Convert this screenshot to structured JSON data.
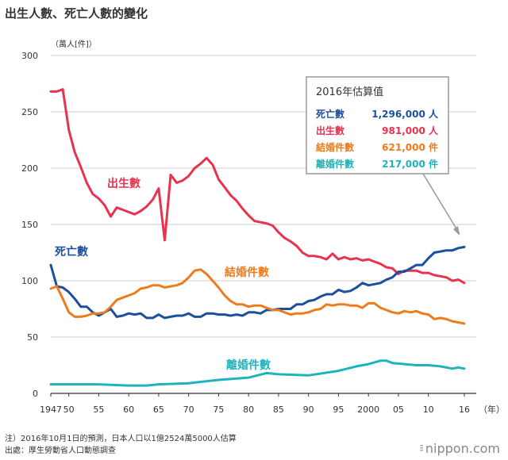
{
  "title": "出生人數、死亡人數的變化",
  "footer": {
    "note": "注）2016年10月1日的預測，日本人口以1億2524萬5000人估算",
    "source": "出處：厚生勞動省人口動態調查"
  },
  "brand": "nippon.com",
  "chart_data": {
    "type": "line",
    "ylabel": "（萬人[件]）",
    "xlabel": "（年）",
    "ylim": [
      0,
      300
    ],
    "yticks": [
      0,
      50,
      100,
      150,
      200,
      250,
      300
    ],
    "xlim": [
      1947,
      2016
    ],
    "xticks": [
      {
        "v": 1947,
        "label": "1947"
      },
      {
        "v": 1950,
        "label": "50"
      },
      {
        "v": 1955,
        "label": "55"
      },
      {
        "v": 1960,
        "label": "60"
      },
      {
        "v": 1965,
        "label": "65"
      },
      {
        "v": 1970,
        "label": "70"
      },
      {
        "v": 1975,
        "label": "75"
      },
      {
        "v": 1980,
        "label": "80"
      },
      {
        "v": 1985,
        "label": "85"
      },
      {
        "v": 1990,
        "label": "90"
      },
      {
        "v": 1995,
        "label": "95"
      },
      {
        "v": 2000,
        "label": "2000"
      },
      {
        "v": 2005,
        "label": "05"
      },
      {
        "v": 2010,
        "label": "10"
      },
      {
        "v": 2016,
        "label": "16"
      }
    ],
    "series": [
      {
        "name": "出生數",
        "color": "#e8334e",
        "x": [
          1947,
          1948,
          1949,
          1950,
          1951,
          1952,
          1953,
          1954,
          1955,
          1956,
          1957,
          1958,
          1959,
          1960,
          1961,
          1962,
          1963,
          1964,
          1965,
          1966,
          1967,
          1968,
          1969,
          1970,
          1971,
          1972,
          1973,
          1974,
          1975,
          1976,
          1977,
          1978,
          1979,
          1980,
          1981,
          1982,
          1983,
          1984,
          1985,
          1986,
          1987,
          1988,
          1989,
          1990,
          1991,
          1992,
          1993,
          1994,
          1995,
          1996,
          1997,
          1998,
          1999,
          2000,
          2001,
          2002,
          2003,
          2004,
          2005,
          2006,
          2007,
          2008,
          2009,
          2010,
          2011,
          2012,
          2013,
          2014,
          2015,
          2016
        ],
        "y": [
          268,
          268,
          270,
          234,
          214,
          201,
          187,
          177,
          173,
          167,
          157,
          165,
          163,
          161,
          159,
          162,
          166,
          172,
          182,
          136,
          194,
          187,
          189,
          193,
          200,
          204,
          209,
          203,
          190,
          183,
          176,
          171,
          164,
          158,
          153,
          152,
          151,
          149,
          143,
          138,
          135,
          131,
          125,
          122,
          122,
          121,
          119,
          124,
          119,
          121,
          119,
          120,
          118,
          119,
          117,
          115,
          112,
          111,
          106,
          109,
          109,
          109,
          107,
          107,
          105,
          104,
          103,
          100,
          101,
          98
        ]
      },
      {
        "name": "死亡數",
        "color": "#1c4f9c",
        "x": [
          1947,
          1948,
          1949,
          1950,
          1951,
          1952,
          1953,
          1954,
          1955,
          1956,
          1957,
          1958,
          1959,
          1960,
          1961,
          1962,
          1963,
          1964,
          1965,
          1966,
          1967,
          1968,
          1969,
          1970,
          1971,
          1972,
          1973,
          1974,
          1975,
          1976,
          1977,
          1978,
          1979,
          1980,
          1981,
          1982,
          1983,
          1984,
          1985,
          1986,
          1987,
          1988,
          1989,
          1990,
          1991,
          1992,
          1993,
          1994,
          1995,
          1996,
          1997,
          1998,
          1999,
          2000,
          2001,
          2002,
          2003,
          2004,
          2005,
          2006,
          2007,
          2008,
          2009,
          2010,
          2011,
          2012,
          2013,
          2014,
          2015,
          2016
        ],
        "y": [
          114,
          95,
          94,
          90,
          84,
          77,
          77,
          72,
          69,
          72,
          75,
          68,
          69,
          71,
          70,
          71,
          67,
          67,
          70,
          67,
          68,
          69,
          69,
          71,
          68,
          68,
          71,
          71,
          70,
          70,
          69,
          70,
          69,
          72,
          72,
          71,
          74,
          74,
          75,
          75,
          75,
          79,
          79,
          82,
          83,
          86,
          88,
          88,
          92,
          90,
          91,
          94,
          98,
          96,
          97,
          98,
          101,
          103,
          108,
          108,
          111,
          114,
          114,
          120,
          125,
          126,
          127,
          127,
          129,
          130
        ]
      },
      {
        "name": "結婚件數",
        "color": "#ee7b1c",
        "x": [
          1947,
          1948,
          1949,
          1950,
          1951,
          1952,
          1953,
          1954,
          1955,
          1956,
          1957,
          1958,
          1959,
          1960,
          1961,
          1962,
          1963,
          1964,
          1965,
          1966,
          1967,
          1968,
          1969,
          1970,
          1971,
          1972,
          1973,
          1974,
          1975,
          1976,
          1977,
          1978,
          1979,
          1980,
          1981,
          1982,
          1983,
          1984,
          1985,
          1986,
          1987,
          1988,
          1989,
          1990,
          1991,
          1992,
          1993,
          1994,
          1995,
          1996,
          1997,
          1998,
          1999,
          2000,
          2001,
          2002,
          2003,
          2004,
          2005,
          2006,
          2007,
          2008,
          2009,
          2010,
          2011,
          2012,
          2013,
          2014,
          2015,
          2016
        ],
        "y": [
          93,
          95,
          84,
          72,
          68,
          68,
          69,
          71,
          71,
          72,
          77,
          83,
          85,
          87,
          89,
          93,
          94,
          96,
          96,
          94,
          95,
          96,
          98,
          103,
          109,
          110,
          106,
          100,
          94,
          87,
          82,
          79,
          79,
          77,
          78,
          78,
          76,
          74,
          74,
          72,
          70,
          71,
          71,
          72,
          74,
          75,
          79,
          78,
          79,
          79,
          78,
          78,
          76,
          80,
          80,
          76,
          74,
          72,
          71,
          73,
          72,
          73,
          71,
          70,
          66,
          67,
          66,
          64,
          63,
          62
        ]
      },
      {
        "name": "離婚件數",
        "color": "#1db4bd",
        "x": [
          1947,
          1950,
          1955,
          1960,
          1963,
          1965,
          1970,
          1975,
          1980,
          1983,
          1985,
          1990,
          1995,
          1998,
          2000,
          2002,
          2003,
          2004,
          2006,
          2008,
          2010,
          2012,
          2014,
          2015,
          2016
        ],
        "y": [
          8,
          8,
          8,
          7,
          7,
          8,
          9,
          12,
          14,
          18,
          17,
          16,
          20,
          24,
          26,
          29,
          29,
          27,
          26,
          25,
          25,
          24,
          22,
          23,
          22
        ]
      }
    ],
    "labels": {
      "birth": "出生數",
      "death": "死亡數",
      "marriage": "結婚件數",
      "divorce": "離婚件數"
    },
    "annotation_box": {
      "title": "2016年估算值",
      "rows": [
        {
          "label": "死亡數",
          "value": "1,296,000 人",
          "color": "#1c4f9c"
        },
        {
          "label": "出生數",
          "value": "981,000 人",
          "color": "#e8334e"
        },
        {
          "label": "結婚件數",
          "value": "621,000 件",
          "color": "#ee7b1c"
        },
        {
          "label": "離婚件數",
          "value": "217,000 件",
          "color": "#1db4bd"
        }
      ]
    }
  }
}
